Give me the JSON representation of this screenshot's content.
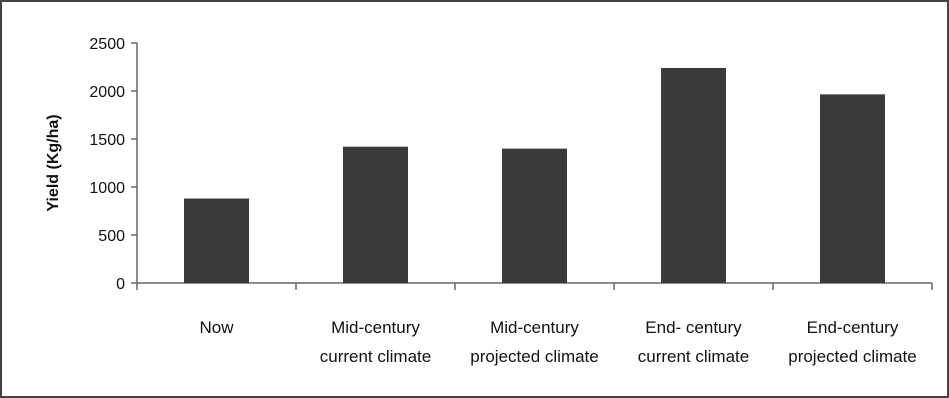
{
  "chart_data": {
    "type": "bar",
    "title": "",
    "xlabel": "",
    "ylabel": "Yield (Kg/ha)",
    "ylim": [
      0,
      2500
    ],
    "yticks": [
      0,
      500,
      1000,
      1500,
      2000,
      2500
    ],
    "grid": false,
    "legend": "none",
    "bar_color": "#3a3a3a",
    "categories": [
      "Now",
      "Mid-century current climate",
      "Mid-century projected climate",
      "End- century current climate",
      "End-century projected climate"
    ],
    "category_lines": [
      [
        "Now"
      ],
      [
        "Mid-century",
        "current climate"
      ],
      [
        "Mid-century",
        "projected climate"
      ],
      [
        "End- century",
        "current climate"
      ],
      [
        "End-century",
        "projected climate"
      ]
    ],
    "values": [
      880,
      1420,
      1400,
      2240,
      1965
    ]
  }
}
